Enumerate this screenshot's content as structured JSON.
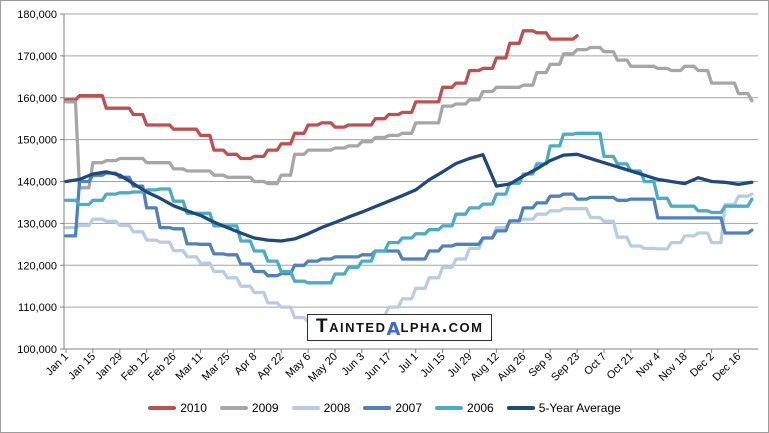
{
  "watermark": {
    "prefix": "Tainted",
    "alpha": "α",
    "suffix": "lpha.com",
    "alpha_color": "#3a68d8"
  },
  "chart_data": {
    "type": "line",
    "title": "",
    "grid": true,
    "legend_position": "bottom",
    "ylim": [
      100000,
      180000
    ],
    "y_tick_step": 10000,
    "y_tick_labels": [
      "180,000",
      "170,000",
      "160,000",
      "150,000",
      "140,000",
      "130,000",
      "120,000",
      "110,000",
      "100,000"
    ],
    "x_tick_labels": [
      "Jan 1",
      "Jan 15",
      "Jan 29",
      "Feb 12",
      "Feb 26",
      "Mar 11",
      "Mar 25",
      "Apr 8",
      "Apr 22",
      "May 6",
      "May 20",
      "Jun 3",
      "Jun 17",
      "Jul 1",
      "Jul 15",
      "Jul 29",
      "Aug 12",
      "Aug 26",
      "Sep 9",
      "Sep 23",
      "Oct 7",
      "Oct 21",
      "Nov 4",
      "Nov 18",
      "Dec 2",
      "Dec 16"
    ],
    "weeks_total": 52,
    "series": [
      {
        "name": "2010",
        "color": "#C0504D",
        "interpolation": "step",
        "values": [
          159500,
          160500,
          160500,
          157500,
          157500,
          156000,
          153500,
          153500,
          152500,
          152500,
          151000,
          147500,
          146500,
          145500,
          146000,
          147500,
          149000,
          151500,
          153500,
          154000,
          153000,
          153500,
          153500,
          155000,
          156000,
          156500,
          159000,
          159000,
          162500,
          163500,
          166500,
          167000,
          169500,
          173000,
          176000,
          175500,
          174000,
          174000,
          174800
        ]
      },
      {
        "name": "2009",
        "color": "#A6A6A6",
        "interpolation": "step",
        "values": [
          159000,
          138500,
          144500,
          145000,
          145500,
          145500,
          144500,
          144500,
          143000,
          142500,
          142500,
          141500,
          141000,
          141000,
          140000,
          139500,
          141500,
          146500,
          147500,
          147500,
          148000,
          148500,
          149500,
          150500,
          151000,
          151500,
          154000,
          154000,
          158000,
          158500,
          159500,
          161500,
          162500,
          162500,
          163000,
          166000,
          168000,
          170500,
          171500,
          172000,
          171000,
          169000,
          167500,
          167500,
          167000,
          166500,
          167500,
          166500,
          163500,
          163500,
          161000,
          159300
        ]
      },
      {
        "name": "2008",
        "color": "#B8CCE4",
        "interpolation": "step",
        "values": [
          129000,
          129500,
          131000,
          130500,
          129500,
          128000,
          126000,
          125500,
          123500,
          122000,
          120500,
          118500,
          117000,
          115000,
          113500,
          111000,
          110000,
          107500,
          106500,
          106000,
          105500,
          105500,
          106500,
          108000,
          110000,
          112000,
          114500,
          117000,
          119500,
          121500,
          124000,
          126500,
          129000,
          130600,
          131000,
          132200,
          133000,
          133500,
          133500,
          131400,
          130500,
          126700,
          124600,
          124000,
          123900,
          125400,
          127000,
          127700,
          125400,
          134500,
          136500,
          137000
        ]
      },
      {
        "name": "2007",
        "color": "#4F81BD",
        "interpolation": "step",
        "values": [
          127000,
          140000,
          141500,
          142000,
          141000,
          138900,
          133700,
          129000,
          128700,
          125100,
          125000,
          122700,
          122500,
          120300,
          118500,
          117500,
          118000,
          120000,
          121000,
          121500,
          122000,
          122000,
          122500,
          123400,
          123400,
          121500,
          121500,
          123400,
          124600,
          125000,
          125000,
          126500,
          128200,
          130600,
          133700,
          134900,
          136500,
          137000,
          135800,
          136200,
          136200,
          135500,
          135800,
          135800,
          131300,
          131300,
          131300,
          131300,
          131300,
          127700,
          127700,
          128400
        ]
      },
      {
        "name": "2006",
        "color": "#4BACC6",
        "interpolation": "step",
        "values": [
          135500,
          134500,
          135500,
          137000,
          137300,
          137500,
          138000,
          138200,
          135300,
          132400,
          132400,
          129400,
          129400,
          125800,
          123400,
          121000,
          118500,
          116200,
          115800,
          115800,
          117900,
          119500,
          121000,
          123400,
          125400,
          126500,
          127500,
          128500,
          129400,
          132200,
          133700,
          134600,
          137000,
          139600,
          141800,
          144200,
          148500,
          151300,
          151500,
          151500,
          146000,
          144200,
          142500,
          140000,
          136000,
          134100,
          134100,
          133000,
          132600,
          134100,
          134100,
          135800
        ]
      },
      {
        "name": "5-Year Average",
        "color": "#1F497D",
        "interpolation": "linear",
        "values": [
          140000,
          140500,
          141800,
          142300,
          141500,
          139500,
          137500,
          136000,
          134200,
          133000,
          131900,
          130300,
          129000,
          127700,
          126500,
          126000,
          125800,
          126300,
          127500,
          129000,
          130200,
          131500,
          132700,
          134000,
          135300,
          136600,
          138000,
          140400,
          142300,
          144300,
          145500,
          146400,
          138900,
          139400,
          141300,
          143000,
          145000,
          146300,
          146500,
          145500,
          144500,
          143500,
          142500,
          141500,
          140500,
          140000,
          139500,
          140900,
          140000,
          139800,
          139300,
          139800
        ]
      }
    ]
  }
}
